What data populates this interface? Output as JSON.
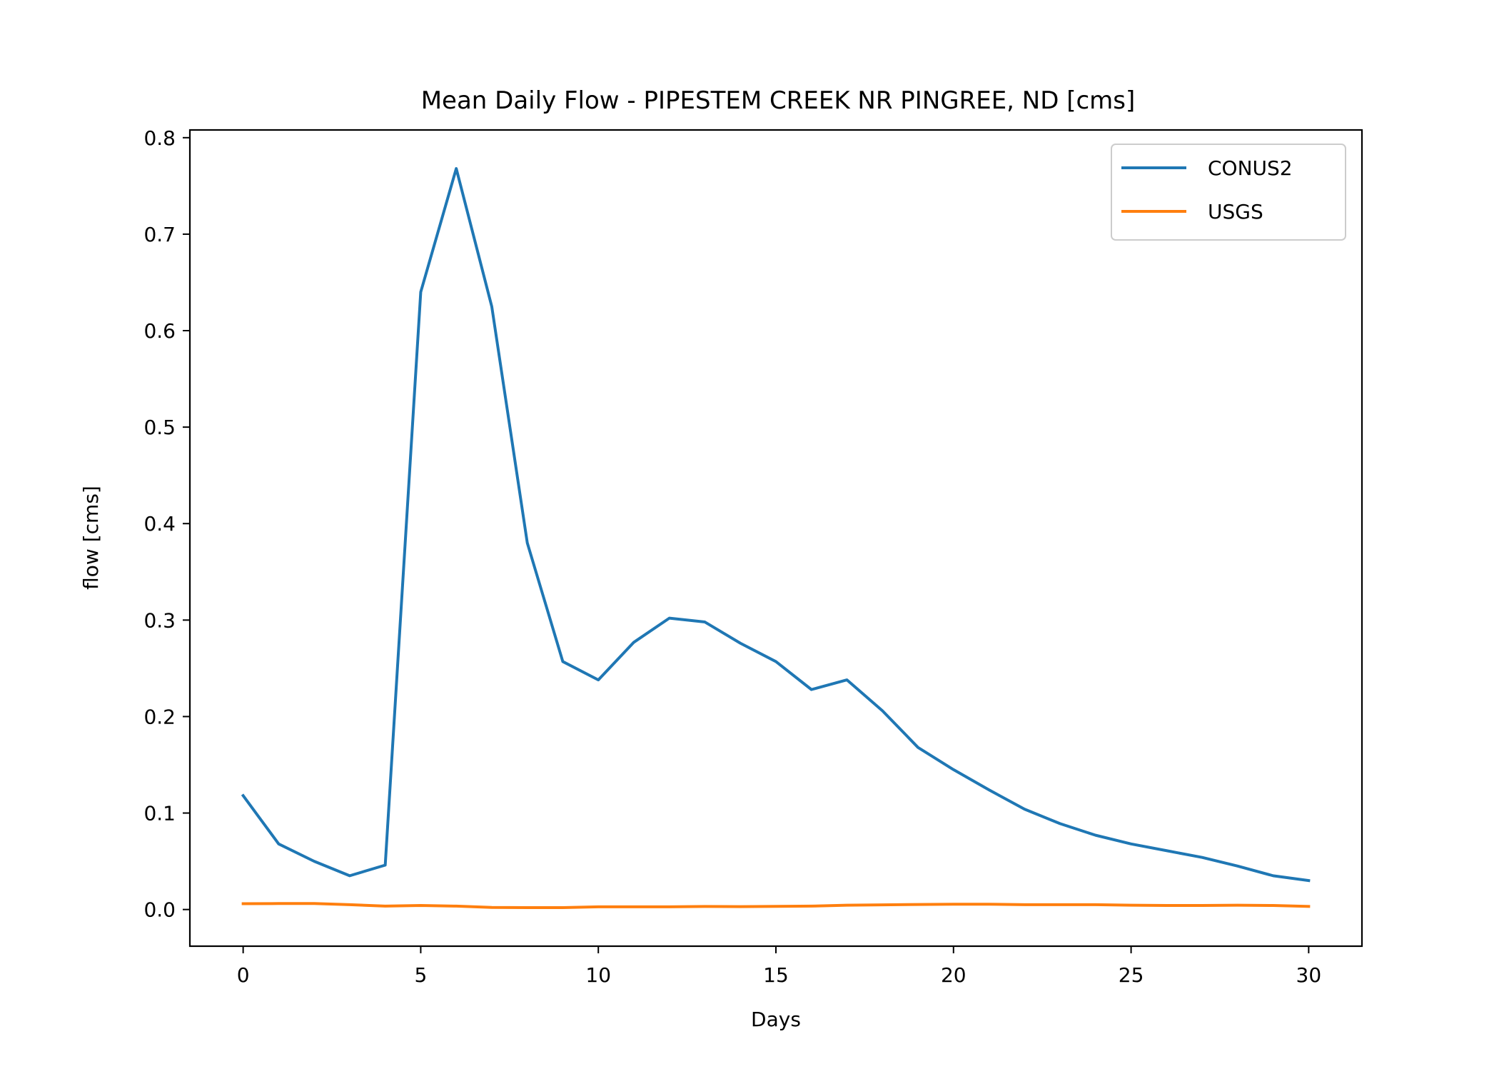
{
  "chart_data": {
    "type": "line",
    "title": "Mean Daily Flow - PIPESTEM CREEK NR PINGREE, ND [cms]",
    "xlabel": "Days",
    "ylabel": "flow [cms]",
    "xlim": [
      -1.5,
      31.5
    ],
    "ylim": [
      -0.038,
      0.808
    ],
    "xticks": [
      0,
      5,
      10,
      15,
      20,
      25,
      30
    ],
    "xtick_labels": [
      "0",
      "5",
      "10",
      "15",
      "20",
      "25",
      "30"
    ],
    "yticks": [
      0.0,
      0.1,
      0.2,
      0.3,
      0.4,
      0.5,
      0.6,
      0.7,
      0.8
    ],
    "ytick_labels": [
      "0.0",
      "0.1",
      "0.2",
      "0.3",
      "0.4",
      "0.5",
      "0.6",
      "0.7",
      "0.8"
    ],
    "grid": false,
    "legend_position": "top-right",
    "x": [
      0,
      1,
      2,
      3,
      4,
      5,
      6,
      7,
      8,
      9,
      10,
      11,
      12,
      13,
      14,
      15,
      16,
      17,
      18,
      19,
      20,
      21,
      22,
      23,
      24,
      25,
      26,
      27,
      28,
      29,
      30
    ],
    "series": [
      {
        "name": "CONUS2",
        "color": "#1f77b4",
        "values": [
          0.118,
          0.068,
          0.05,
          0.035,
          0.046,
          0.64,
          0.768,
          0.625,
          0.38,
          0.257,
          0.238,
          0.277,
          0.302,
          0.298,
          0.276,
          0.257,
          0.228,
          0.238,
          0.206,
          0.168,
          0.145,
          0.124,
          0.104,
          0.089,
          0.077,
          0.068,
          0.061,
          0.054,
          0.045,
          0.035,
          0.03
        ]
      },
      {
        "name": "USGS",
        "color": "#ff7f0e",
        "values": [
          0.006,
          0.0062,
          0.0062,
          0.005,
          0.0035,
          0.0042,
          0.0035,
          0.0022,
          0.002,
          0.002,
          0.0028,
          0.0028,
          0.0028,
          0.0032,
          0.003,
          0.0033,
          0.0035,
          0.0045,
          0.0048,
          0.0052,
          0.0055,
          0.0055,
          0.005,
          0.005,
          0.005,
          0.0045,
          0.0042,
          0.0042,
          0.0045,
          0.0042,
          0.0032
        ]
      }
    ]
  }
}
